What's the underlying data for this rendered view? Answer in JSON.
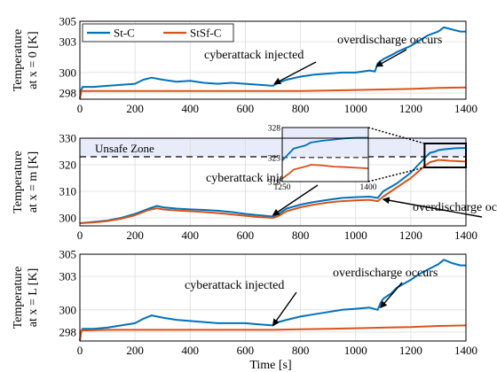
{
  "chart_data": [
    {
      "type": "line",
      "xlabel": "",
      "ylabel": "Temperature",
      "ylabel_sub": "at x = 0 [K]",
      "xlim": [
        0,
        1400
      ],
      "ylim": [
        297.4,
        305
      ],
      "xticks": [
        "0",
        "200",
        "400",
        "600",
        "800",
        "1000",
        "1200",
        "1400"
      ],
      "yticks": [
        {
          "v": 298,
          "label": "298"
        },
        {
          "v": 300,
          "label": "300"
        },
        {
          "v": 303,
          "label": "303"
        },
        {
          "v": 305,
          "label": "305"
        }
      ],
      "grid": true,
      "legend": {
        "placement": "top-left",
        "entries": [
          "St-C",
          "StSf-C"
        ]
      },
      "annotations": [
        {
          "text": "cyberattack injected",
          "arrow_to": [
            705,
            298.9
          ]
        },
        {
          "text": "overdischarge occurs",
          "arrow_to": [
            1075,
            300.6
          ]
        }
      ],
      "series": [
        {
          "name": "St-C",
          "color": "#0072BD",
          "x": [
            0,
            5,
            10,
            50,
            100,
            150,
            200,
            230,
            260,
            300,
            350,
            400,
            450,
            500,
            550,
            600,
            650,
            700,
            720,
            750,
            800,
            850,
            900,
            950,
            1000,
            1050,
            1070,
            1080,
            1100,
            1130,
            1150,
            1200,
            1230,
            1260,
            1300,
            1320,
            1350,
            1380,
            1400
          ],
          "y": [
            297.5,
            298.3,
            298.6,
            298.6,
            298.7,
            298.8,
            298.9,
            299.3,
            299.5,
            299.3,
            299.1,
            299.2,
            299.0,
            298.9,
            299.0,
            298.9,
            298.8,
            298.7,
            299.0,
            299.3,
            299.6,
            299.8,
            299.9,
            300.0,
            300.0,
            300.2,
            300.1,
            300.9,
            301.3,
            301.7,
            302.0,
            302.6,
            303.1,
            303.6,
            304.0,
            304.4,
            304.2,
            304.0,
            304.0
          ]
        },
        {
          "name": "StSf-C",
          "color": "#D95319",
          "x": [
            0,
            5,
            10,
            100,
            200,
            300,
            400,
            500,
            600,
            700,
            800,
            900,
            1000,
            1100,
            1200,
            1300,
            1400
          ],
          "y": [
            297.4,
            298.2,
            298.2,
            298.2,
            298.2,
            298.2,
            298.2,
            298.2,
            298.2,
            298.2,
            298.2,
            298.25,
            298.3,
            298.35,
            298.4,
            298.5,
            298.55
          ]
        }
      ]
    },
    {
      "type": "line",
      "xlabel": "",
      "ylabel": "Temperature",
      "ylabel_sub": "at x = m [K]",
      "xlim": [
        0,
        1400
      ],
      "ylim": [
        297,
        330
      ],
      "xticks": [
        "0",
        "200",
        "400",
        "600",
        "800",
        "1000",
        "1200",
        "1400"
      ],
      "yticks": [
        {
          "v": 300,
          "label": "300"
        },
        {
          "v": 310,
          "label": "310"
        },
        {
          "v": 320,
          "label": "320"
        },
        {
          "v": 330,
          "label": "330"
        }
      ],
      "grid": true,
      "unsafe_zone": {
        "label": "Unsafe Zone",
        "threshold": 323
      },
      "annotations": [
        {
          "text": "cyberattack injected",
          "arrow_to": [
            700,
            301
          ]
        },
        {
          "text": "overdischarge occurs",
          "arrow_to": [
            1100,
            307
          ]
        }
      ],
      "inset": {
        "xlim": [
          1250,
          1400
        ],
        "ylim": [
          319,
          328
        ],
        "xticks": [
          "1250",
          "1400"
        ],
        "yticks": [
          {
            "v": 328,
            "label": "328"
          },
          {
            "v": 323,
            "label": "323"
          },
          {
            "v": 319,
            "label": "319"
          }
        ]
      },
      "series": [
        {
          "name": "St-C",
          "color": "#0072BD",
          "x": [
            0,
            50,
            100,
            150,
            200,
            250,
            280,
            300,
            350,
            400,
            450,
            500,
            550,
            600,
            650,
            700,
            720,
            750,
            800,
            850,
            900,
            950,
            1000,
            1050,
            1080,
            1100,
            1150,
            1200,
            1250,
            1260,
            1270,
            1290,
            1300,
            1320,
            1340,
            1360,
            1380,
            1400
          ],
          "y": [
            298,
            298.5,
            299,
            300,
            301.5,
            303.5,
            304.5,
            304,
            303.5,
            303.2,
            303,
            302.7,
            302.2,
            301.5,
            301,
            300.5,
            301.5,
            303.5,
            305,
            306,
            306.8,
            307.5,
            307.8,
            308,
            307.5,
            310,
            313,
            317,
            322.5,
            323.5,
            324.5,
            325,
            325.5,
            325.8,
            326,
            326.2,
            326.3,
            326.3
          ]
        },
        {
          "name": "StSf-C",
          "color": "#D95319",
          "x": [
            0,
            50,
            100,
            150,
            200,
            250,
            280,
            300,
            350,
            400,
            450,
            500,
            550,
            600,
            650,
            700,
            720,
            750,
            800,
            850,
            900,
            950,
            1000,
            1050,
            1080,
            1100,
            1150,
            1200,
            1250,
            1260,
            1270,
            1290,
            1300,
            1320,
            1340,
            1360,
            1380,
            1400
          ],
          "y": [
            298,
            298.3,
            298.8,
            299.7,
            301,
            303,
            303.6,
            303.2,
            302.8,
            302.5,
            302.2,
            301.8,
            301.3,
            300.8,
            300.3,
            300,
            300.7,
            302.5,
            304,
            305,
            305.8,
            306.3,
            306.6,
            306.8,
            306.3,
            308,
            311.5,
            315,
            319.5,
            320.2,
            321,
            321.5,
            321.8,
            321.7,
            321.5,
            321.4,
            321.3,
            321.2
          ]
        }
      ]
    },
    {
      "type": "line",
      "xlabel": "Time [s]",
      "ylabel": "Temperature",
      "ylabel_sub": "at x = L [K]",
      "xlim": [
        0,
        1400
      ],
      "ylim": [
        297.2,
        305
      ],
      "xticks": [
        "0",
        "200",
        "400",
        "600",
        "800",
        "1000",
        "1200",
        "1400"
      ],
      "yticks": [
        {
          "v": 298,
          "label": "298"
        },
        {
          "v": 300,
          "label": "300"
        },
        {
          "v": 303,
          "label": "303"
        },
        {
          "v": 305,
          "label": "305"
        }
      ],
      "grid": true,
      "annotations": [
        {
          "text": "cyberattack injected",
          "arrow_to": [
            700,
            298.6
          ]
        },
        {
          "text": "overdischarge occurs",
          "arrow_to": [
            1090,
            300.2
          ]
        }
      ],
      "series": [
        {
          "name": "St-C",
          "color": "#0072BD",
          "x": [
            0,
            5,
            10,
            50,
            100,
            150,
            200,
            230,
            260,
            300,
            350,
            400,
            450,
            500,
            550,
            600,
            650,
            700,
            720,
            750,
            800,
            850,
            900,
            950,
            1000,
            1050,
            1080,
            1090,
            1100,
            1130,
            1150,
            1200,
            1230,
            1260,
            1300,
            1320,
            1350,
            1380,
            1400
          ],
          "y": [
            297.3,
            298.1,
            298.3,
            298.3,
            298.4,
            298.6,
            298.8,
            299.2,
            299.5,
            299.3,
            299.1,
            299.0,
            298.9,
            298.8,
            298.8,
            298.8,
            298.7,
            298.6,
            298.9,
            299.1,
            299.4,
            299.6,
            299.8,
            300.0,
            300.1,
            300.2,
            300.0,
            300.6,
            301.0,
            301.5,
            302.0,
            302.7,
            303.2,
            303.6,
            304.1,
            304.5,
            304.2,
            304.0,
            304.0
          ]
        },
        {
          "name": "StSf-C",
          "color": "#D95319",
          "x": [
            0,
            5,
            10,
            100,
            200,
            300,
            400,
            500,
            600,
            700,
            800,
            900,
            1000,
            1100,
            1200,
            1300,
            1400
          ],
          "y": [
            297.2,
            298.1,
            298.15,
            298.2,
            298.2,
            298.2,
            298.2,
            298.2,
            298.2,
            298.2,
            298.25,
            298.3,
            298.35,
            298.4,
            298.45,
            298.55,
            298.6
          ]
        }
      ]
    }
  ]
}
